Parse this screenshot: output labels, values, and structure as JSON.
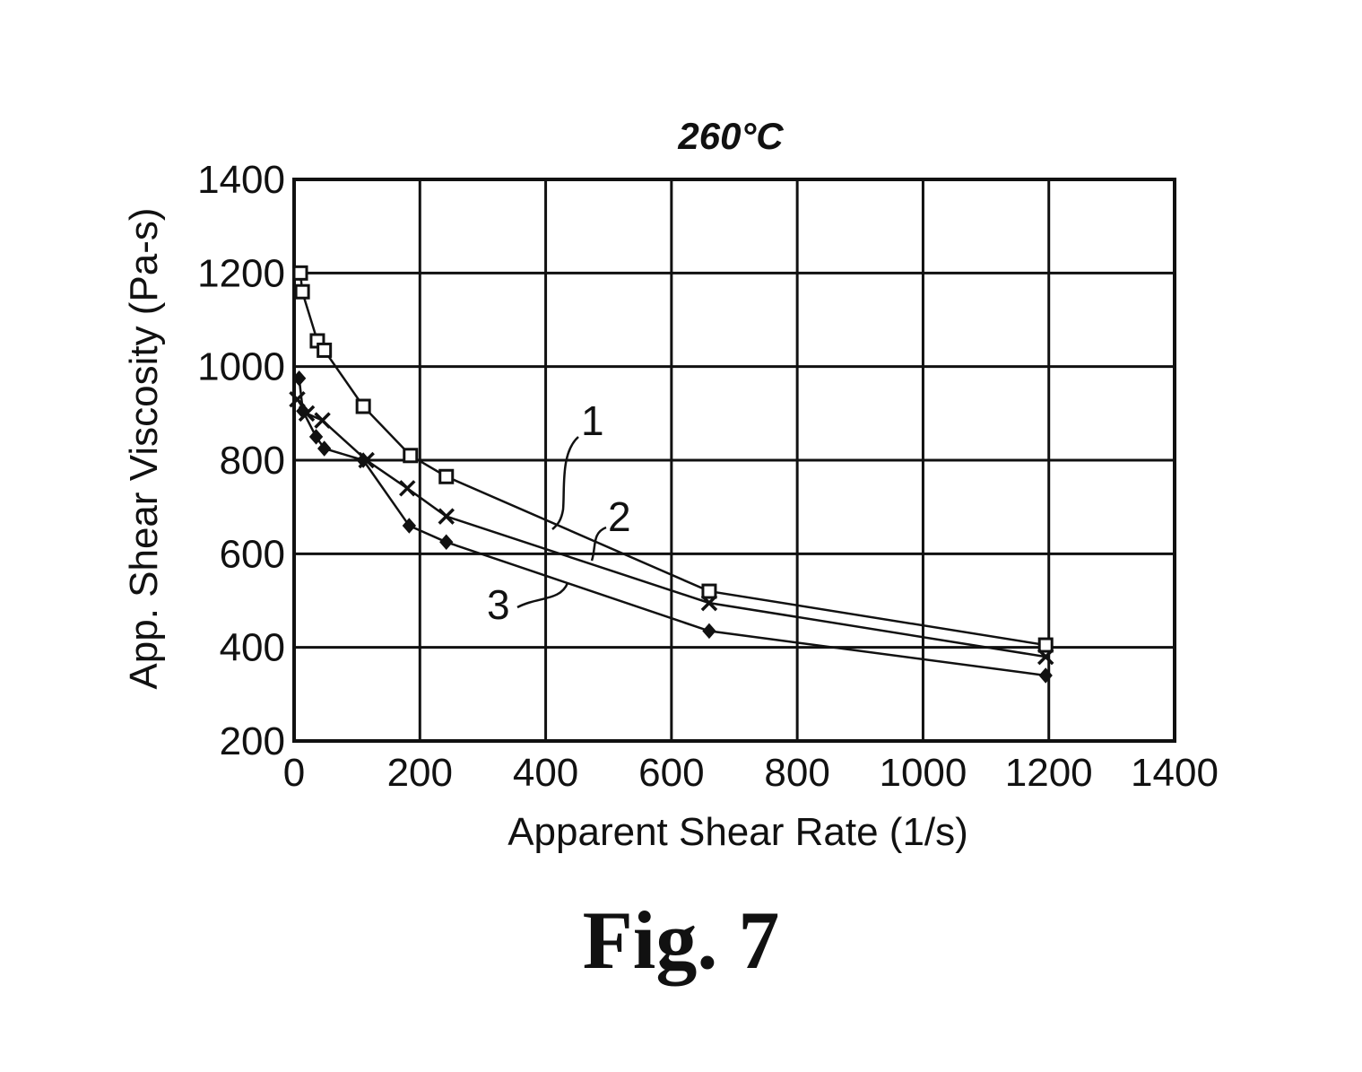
{
  "chart_data": {
    "type": "line",
    "title": "260°C",
    "xlabel": "Apparent Shear Rate (1/s)",
    "ylabel": "App. Shear Viscosity (Pa-s)",
    "xlim": [
      0,
      1400
    ],
    "ylim": [
      200,
      1400
    ],
    "xticks": [
      0,
      200,
      400,
      600,
      800,
      1000,
      1200,
      1400
    ],
    "yticks": [
      200,
      400,
      600,
      800,
      1000,
      1200,
      1400
    ],
    "grid": true,
    "series": [
      {
        "name": "1",
        "marker": "square",
        "x": [
          10,
          13,
          37,
          48,
          110,
          185,
          242,
          660,
          1195
        ],
        "y": [
          1200,
          1160,
          1055,
          1035,
          915,
          810,
          765,
          520,
          405
        ]
      },
      {
        "name": "2",
        "marker": "x",
        "x": [
          5,
          20,
          45,
          115,
          180,
          242,
          660,
          1195
        ],
        "y": [
          930,
          900,
          885,
          800,
          740,
          680,
          495,
          380
        ]
      },
      {
        "name": "3",
        "marker": "diamond",
        "x": [
          8,
          14,
          35,
          48,
          110,
          183,
          242,
          660,
          1195
        ],
        "y": [
          975,
          905,
          850,
          825,
          800,
          660,
          625,
          435,
          340
        ]
      }
    ]
  },
  "figure_caption": "Fig. 7",
  "colors": {
    "ink": "#111111",
    "background": "#ffffff"
  }
}
